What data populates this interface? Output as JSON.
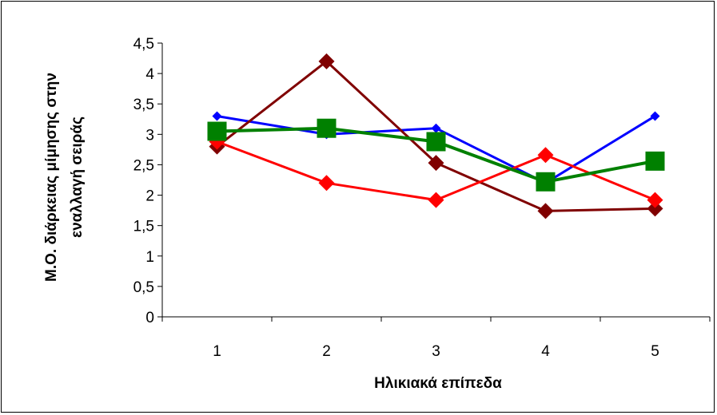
{
  "chart_data": {
    "type": "line",
    "xlabel": "Ηλικιακά επίπεδα",
    "ylabel_lines": [
      "Μ.Ο. διάρκειας μίμησης στην",
      "εναλλαγή σειράς"
    ],
    "categories": [
      "1",
      "2",
      "3",
      "4",
      "5"
    ],
    "ylim": [
      0,
      4.5
    ],
    "yticks": [
      0,
      0.5,
      1,
      1.5,
      2,
      2.5,
      3,
      3.5,
      4,
      4.5
    ],
    "ytick_labels": [
      "0",
      "0,5",
      "1",
      "1,5",
      "2",
      "2,5",
      "3",
      "3,5",
      "4",
      "4,5"
    ],
    "grid": false,
    "legend": "none",
    "series": [
      {
        "values": [
          3.3,
          3.0,
          3.1,
          2.2,
          3.3
        ],
        "color": "#0000ff",
        "marker": "diamond-small"
      },
      {
        "values": [
          2.8,
          4.2,
          2.53,
          1.74,
          1.78
        ],
        "color": "#800000",
        "marker": "diamond"
      },
      {
        "values": [
          2.88,
          2.2,
          1.92,
          2.66,
          1.92
        ],
        "color": "#ff0000",
        "marker": "diamond"
      },
      {
        "values": [
          3.05,
          3.1,
          2.88,
          2.22,
          2.56
        ],
        "color": "#008000",
        "marker": "square"
      }
    ]
  }
}
